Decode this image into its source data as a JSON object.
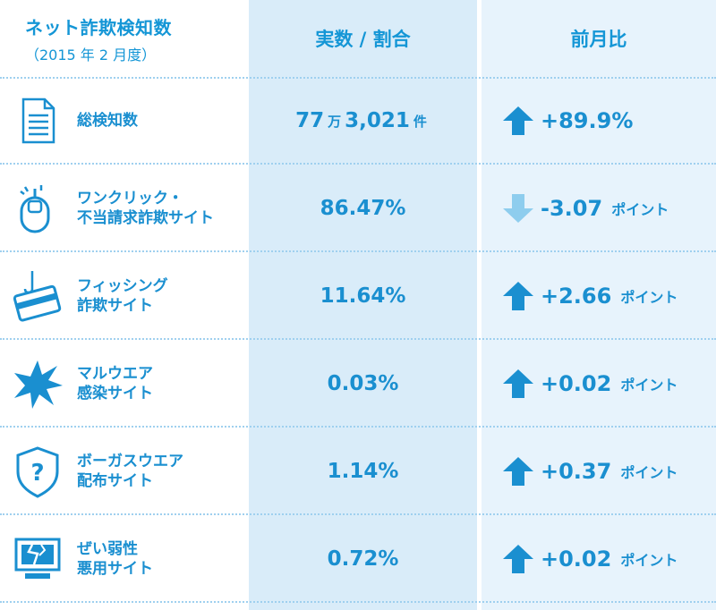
{
  "header": {
    "col1_title": "ネット詐欺検知数",
    "col1_sub": "（2015 年 2 月度）",
    "col2": "実数 / 割合",
    "col3": "前月比"
  },
  "rows": [
    {
      "line1": "総検知数",
      "line2": "",
      "value": "77",
      "value_unit1": "万",
      "value_rest": "3,021",
      "value_unit2": "件",
      "direction": "up",
      "change": "+89.9%",
      "change_unit": "",
      "icon": "document-icon"
    },
    {
      "line1": "ワンクリック・",
      "line2": "不当請求詐欺サイト",
      "value": "86.47%",
      "value_unit1": "",
      "value_rest": "",
      "value_unit2": "",
      "direction": "down",
      "change": "-3.07",
      "change_unit": "ポイント",
      "icon": "mouse-icon"
    },
    {
      "line1": "フィッシング",
      "line2": "詐欺サイト",
      "value": "11.64%",
      "value_unit1": "",
      "value_rest": "",
      "value_unit2": "",
      "direction": "up",
      "change": "+2.66",
      "change_unit": "ポイント",
      "icon": "credit-card-hook-icon"
    },
    {
      "line1": "マルウエア",
      "line2": "感染サイト",
      "value": "0.03%",
      "value_unit1": "",
      "value_rest": "",
      "value_unit2": "",
      "direction": "up",
      "change": "+0.02",
      "change_unit": "ポイント",
      "icon": "burst-icon"
    },
    {
      "line1": "ボーガスウエア",
      "line2": "配布サイト",
      "value": "1.14%",
      "value_unit1": "",
      "value_rest": "",
      "value_unit2": "",
      "direction": "up",
      "change": "+0.37",
      "change_unit": "ポイント",
      "icon": "question-shield-icon"
    },
    {
      "line1": "ぜい弱性",
      "line2": "悪用サイト",
      "value": "0.72%",
      "value_unit1": "",
      "value_rest": "",
      "value_unit2": "",
      "direction": "up",
      "change": "+0.02",
      "change_unit": "ポイント",
      "icon": "broken-monitor-icon"
    }
  ],
  "colors": {
    "primary": "#1a8fd0",
    "arrow_up": "#1a8fd0",
    "arrow_down": "#8ecdee",
    "col2_bg": "#d9ecf9",
    "col3_bg": "#e7f3fc"
  }
}
